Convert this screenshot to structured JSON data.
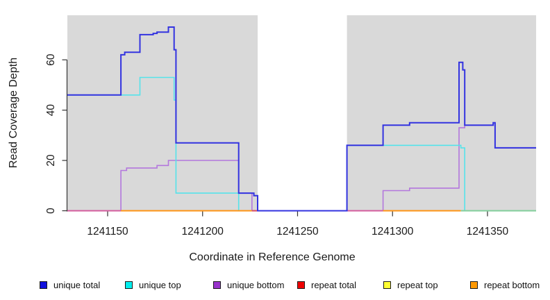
{
  "chart_data": {
    "type": "line",
    "title": "",
    "xlabel": "Coordinate in Reference Genome",
    "ylabel": "Read Coverage Depth",
    "xlim": [
      1241128.8,
      1241375.6
    ],
    "ylim": [
      0,
      77.7
    ],
    "x_ticks": [
      1241150,
      1241200,
      1241250,
      1241300,
      1241350
    ],
    "y_ticks": [
      0,
      20,
      40,
      60
    ],
    "grid": false,
    "legend_position": "bottom",
    "plot_background": "#d9d9d9",
    "shaded_regions": [
      {
        "from": 1241128.8,
        "to": 1241229,
        "color": "#d9d9d9"
      },
      {
        "from": 1241276,
        "to": 1241375.6,
        "color": "#d9d9d9"
      }
    ],
    "zero_line_segments": [
      {
        "from": 1241128.8,
        "to": 1241157,
        "color": "#d45d9e"
      },
      {
        "from": 1241157,
        "to": 1241226,
        "color": "#ff9414"
      },
      {
        "from": 1241226,
        "to": 1241229,
        "color": "#d84a5f"
      },
      {
        "from": 1241229,
        "to": 1241276,
        "color": "#5555e0"
      },
      {
        "from": 1241276,
        "to": 1241295,
        "color": "#d45d9e"
      },
      {
        "from": 1241295,
        "to": 1241336,
        "color": "#ff9414"
      },
      {
        "from": 1241336,
        "to": 1241375.6,
        "color": "#82cf9b"
      }
    ],
    "series": [
      {
        "name": "unique bottom",
        "color": "#b377dd",
        "width": 1.6,
        "steps": [
          [
            1241128.8,
            0
          ],
          [
            1241157,
            16
          ],
          [
            1241160,
            17
          ],
          [
            1241176,
            18
          ],
          [
            1241182,
            20
          ],
          [
            1241219,
            7
          ],
          [
            1241226,
            0
          ],
          [
            1241295,
            8
          ],
          [
            1241309,
            9
          ],
          [
            1241335,
            33
          ],
          [
            1241338,
            34
          ],
          [
            1241353,
            35
          ],
          [
            1241354,
            25
          ]
        ]
      },
      {
        "name": "unique top",
        "color": "#55e3ea",
        "width": 1.6,
        "steps": [
          [
            1241128.8,
            46
          ],
          [
            1241167,
            53
          ],
          [
            1241185,
            44
          ],
          [
            1241186,
            7
          ],
          [
            1241219,
            0
          ],
          [
            1241276,
            26
          ],
          [
            1241336,
            25
          ],
          [
            1241338,
            0
          ]
        ]
      },
      {
        "name": "unique total",
        "color": "#3333e0",
        "width": 2,
        "steps": [
          [
            1241128.8,
            46
          ],
          [
            1241157,
            62
          ],
          [
            1241159,
            63
          ],
          [
            1241167,
            70
          ],
          [
            1241174,
            70.5
          ],
          [
            1241176,
            71
          ],
          [
            1241182,
            73
          ],
          [
            1241185,
            64
          ],
          [
            1241186,
            27
          ],
          [
            1241219,
            7
          ],
          [
            1241227,
            6
          ],
          [
            1241229,
            0
          ],
          [
            1241276,
            26
          ],
          [
            1241295,
            34
          ],
          [
            1241309,
            35
          ],
          [
            1241335,
            59
          ],
          [
            1241337,
            56
          ],
          [
            1241338,
            34
          ],
          [
            1241353,
            35
          ],
          [
            1241354,
            25
          ]
        ]
      },
      {
        "name": "repeat total",
        "color": "#ee0000",
        "width": 1.6,
        "steps": [
          [
            1241128.8,
            0
          ]
        ]
      },
      {
        "name": "repeat top",
        "color": "#ffff00",
        "width": 1.6,
        "steps": [
          [
            1241128.8,
            0
          ]
        ]
      },
      {
        "name": "repeat bottom",
        "color": "#ff9900",
        "width": 1.6,
        "steps": [
          [
            1241157,
            0
          ]
        ]
      }
    ]
  },
  "legend": {
    "items": [
      {
        "label": "unique total",
        "color": "#1111dd"
      },
      {
        "label": "unique top",
        "color": "#00eeee"
      },
      {
        "label": "unique bottom",
        "color": "#9933cc"
      },
      {
        "label": "repeat total",
        "color": "#ee0000"
      },
      {
        "label": "repeat top",
        "color": "#ffff33"
      },
      {
        "label": "repeat bottom",
        "color": "#ff9900"
      }
    ]
  }
}
